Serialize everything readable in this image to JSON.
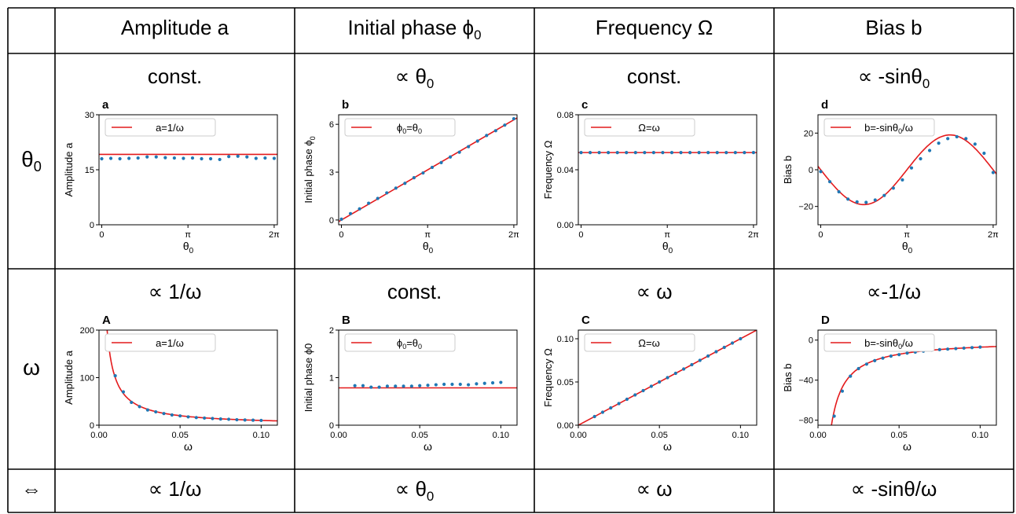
{
  "columns": [
    "Amplitude a",
    "Initial phase ϕ",
    "Frequency Ω",
    "Bias b"
  ],
  "column_subscripts": [
    "",
    "0",
    "",
    ""
  ],
  "rows": [
    {
      "label": "θ",
      "label_sub": "0",
      "rules": [
        "const.",
        "∝ θ",
        "const.",
        "∝ -sinθ"
      ],
      "rule_subs": [
        "",
        "0",
        "",
        "0"
      ]
    },
    {
      "label": "ω",
      "label_sub": "",
      "rules": [
        "∝ 1/ω",
        "const.",
        "∝ ω",
        "∝-1/ω"
      ],
      "rule_subs": [
        "",
        "",
        "",
        ""
      ]
    }
  ],
  "summary": {
    "label": "⇔",
    "rules": [
      "∝ 1/ω",
      "∝ θ",
      "∝ ω",
      "∝ -sinθ/ω"
    ],
    "rule_subs": [
      "",
      "0",
      "",
      ""
    ],
    "rule_tails": [
      "",
      "",
      "",
      ""
    ]
  },
  "colors": {
    "fit": "#e41a1c",
    "points": "#1f77b4",
    "grid": "#000000"
  },
  "chart_data": [
    {
      "id": "a",
      "type": "scatter",
      "panel_label": "a",
      "xlabel": "θ",
      "xlabel_sub": "0",
      "ylabel": "Amplitude a",
      "xlim": [
        -0.1,
        6.4
      ],
      "ylim": [
        0,
        30
      ],
      "xticks": [
        0,
        3.14159,
        6.28318
      ],
      "xticklabels": [
        "0",
        "π",
        "2π"
      ],
      "yticks": [
        0,
        15,
        30
      ],
      "yticklabels": [
        "0",
        "15",
        "30"
      ],
      "legend": "a=1/ω",
      "legend_sub": "",
      "fit": {
        "kind": "const",
        "value": 19.2
      },
      "points": {
        "x": [
          0,
          0.3307,
          0.6614,
          0.9921,
          1.3228,
          1.6535,
          1.9842,
          2.3149,
          2.6456,
          2.9763,
          3.307,
          3.6377,
          3.9684,
          4.2991,
          4.6298,
          4.9605,
          5.2912,
          5.6219,
          5.9526,
          6.2832
        ],
        "y": [
          18.0,
          18.1,
          18.0,
          18.1,
          18.2,
          18.5,
          18.5,
          18.3,
          18.2,
          18.1,
          18.2,
          18.0,
          18.0,
          17.8,
          18.6,
          18.7,
          18.5,
          18.1,
          18.2,
          18.1
        ]
      }
    },
    {
      "id": "b",
      "type": "scatter",
      "panel_label": "b",
      "xlabel": "θ",
      "xlabel_sub": "0",
      "ylabel": "Initial phase ϕ",
      "ylabel_sub": "0",
      "xlim": [
        -0.1,
        6.4
      ],
      "ylim": [
        -0.3,
        6.6
      ],
      "xticks": [
        0,
        3.14159,
        6.28318
      ],
      "xticklabels": [
        "0",
        "π",
        "2π"
      ],
      "yticks": [
        0,
        3,
        6
      ],
      "yticklabels": [
        "0",
        "3",
        "6"
      ],
      "legend": "ϕ=θ",
      "legend_sub": "0",
      "legend_sub2": "0",
      "fit": {
        "kind": "identity"
      },
      "points": {
        "x": [
          0,
          0.3307,
          0.6614,
          0.9921,
          1.3228,
          1.6535,
          1.9842,
          2.3149,
          2.6456,
          2.9763,
          3.307,
          3.6377,
          3.9684,
          4.2991,
          4.6298,
          4.9605,
          5.2912,
          5.6219,
          5.9526,
          6.2832
        ],
        "y": [
          0.05,
          0.4,
          0.7,
          1.05,
          1.35,
          1.7,
          2.0,
          2.3,
          2.65,
          2.95,
          3.3,
          3.6,
          3.95,
          4.25,
          4.6,
          4.95,
          5.3,
          5.6,
          5.95,
          6.35
        ]
      }
    },
    {
      "id": "c",
      "type": "scatter",
      "panel_label": "c",
      "xlabel": "θ",
      "xlabel_sub": "0",
      "ylabel": "Frequency Ω",
      "xlim": [
        -0.1,
        6.4
      ],
      "ylim": [
        0,
        0.08
      ],
      "xticks": [
        0,
        3.14159,
        6.28318
      ],
      "xticklabels": [
        "0",
        "π",
        "2π"
      ],
      "yticks": [
        0,
        0.04,
        0.08
      ],
      "yticklabels": [
        "0.00",
        "0.04",
        "0.08"
      ],
      "legend": "Ω=ω",
      "legend_sub": "",
      "fit": {
        "kind": "const",
        "value": 0.0525
      },
      "points": {
        "x": [
          0,
          0.3307,
          0.6614,
          0.9921,
          1.3228,
          1.6535,
          1.9842,
          2.3149,
          2.6456,
          2.9763,
          3.307,
          3.6377,
          3.9684,
          4.2991,
          4.6298,
          4.9605,
          5.2912,
          5.6219,
          5.9526,
          6.2832
        ],
        "y": [
          0.0525,
          0.0525,
          0.0525,
          0.0525,
          0.0525,
          0.0525,
          0.0525,
          0.0525,
          0.0525,
          0.0525,
          0.0525,
          0.0525,
          0.0525,
          0.0525,
          0.0525,
          0.0525,
          0.0525,
          0.0525,
          0.0525,
          0.0525
        ]
      }
    },
    {
      "id": "d",
      "type": "scatter",
      "panel_label": "d",
      "xlabel": "θ",
      "xlabel_sub": "0",
      "ylabel": "Bias b",
      "xlim": [
        -0.1,
        6.4
      ],
      "ylim": [
        -30,
        30
      ],
      "xticks": [
        0,
        3.14159,
        6.28318
      ],
      "xticklabels": [
        "0",
        "π",
        "2π"
      ],
      "yticks": [
        -20,
        0,
        20
      ],
      "yticklabels": [
        "−20",
        "0",
        "20"
      ],
      "legend": "b=-sinθ/ω",
      "legend_sub": "0",
      "fit": {
        "kind": "negsin",
        "amp": 19
      },
      "points": {
        "x": [
          0,
          0.3307,
          0.6614,
          0.9921,
          1.3228,
          1.6535,
          1.9842,
          2.3149,
          2.6456,
          2.9763,
          3.307,
          3.6377,
          3.9684,
          4.2991,
          4.6298,
          4.9605,
          5.2912,
          5.6219,
          5.9526,
          6.2832
        ],
        "y": [
          -1,
          -6.5,
          -12,
          -16,
          -17.5,
          -17.8,
          -16.5,
          -14,
          -10,
          -5.5,
          1,
          6,
          10.5,
          14.5,
          17,
          18,
          17,
          14,
          9,
          -1.5
        ]
      }
    },
    {
      "id": "A",
      "type": "scatter",
      "panel_label": "A",
      "xlabel": "ω",
      "ylabel": "Amplitude a",
      "xlim": [
        0,
        0.11
      ],
      "ylim": [
        0,
        200
      ],
      "xticks": [
        0,
        0.05,
        0.1
      ],
      "xticklabels": [
        "0.00",
        "0.05",
        "0.10"
      ],
      "yticks": [
        0,
        100,
        200
      ],
      "yticklabels": [
        "0",
        "100",
        "200"
      ],
      "legend": "a=1/ω",
      "legend_sub": "",
      "fit": {
        "kind": "inverse",
        "k": 1
      },
      "points": {
        "x": [
          0.01,
          0.015,
          0.02,
          0.025,
          0.03,
          0.035,
          0.04,
          0.045,
          0.05,
          0.055,
          0.06,
          0.065,
          0.07,
          0.075,
          0.08,
          0.085,
          0.09,
          0.095,
          0.1
        ],
        "y": [
          104,
          70,
          48,
          39,
          32,
          28,
          24.5,
          21.5,
          19.5,
          17.5,
          16,
          15,
          14,
          13,
          12.5,
          11.5,
          11,
          10.5,
          10
        ]
      }
    },
    {
      "id": "B",
      "type": "scatter",
      "panel_label": "B",
      "xlabel": "ω",
      "ylabel": "Initial phase ϕ0",
      "xlim": [
        0,
        0.11
      ],
      "ylim": [
        0,
        2
      ],
      "xticks": [
        0,
        0.05,
        0.1
      ],
      "xticklabels": [
        "0.00",
        "0.05",
        "0.10"
      ],
      "yticks": [
        0,
        1,
        2
      ],
      "yticklabels": [
        "0",
        "1",
        "2"
      ],
      "legend": "ϕ=θ",
      "legend_sub": "0",
      "legend_sub2": "0",
      "fit": {
        "kind": "const",
        "value": 0.785
      },
      "points": {
        "x": [
          0.01,
          0.015,
          0.02,
          0.025,
          0.03,
          0.035,
          0.04,
          0.045,
          0.05,
          0.055,
          0.06,
          0.065,
          0.07,
          0.075,
          0.08,
          0.085,
          0.09,
          0.095,
          0.1
        ],
        "y": [
          0.83,
          0.83,
          0.8,
          0.8,
          0.82,
          0.82,
          0.82,
          0.82,
          0.83,
          0.84,
          0.85,
          0.86,
          0.86,
          0.86,
          0.85,
          0.87,
          0.88,
          0.89,
          0.9
        ]
      }
    },
    {
      "id": "C",
      "type": "scatter",
      "panel_label": "C",
      "xlabel": "ω",
      "ylabel": "Frequency Ω",
      "xlim": [
        0,
        0.11
      ],
      "ylim": [
        0,
        0.11
      ],
      "xticks": [
        0,
        0.05,
        0.1
      ],
      "xticklabels": [
        "0.00",
        "0.05",
        "0.10"
      ],
      "yticks": [
        0,
        0.05,
        0.1
      ],
      "yticklabels": [
        "0.00",
        "0.05",
        "0.10"
      ],
      "legend": "Ω=ω",
      "legend_sub": "",
      "fit": {
        "kind": "identity"
      },
      "points": {
        "x": [
          0.01,
          0.015,
          0.02,
          0.025,
          0.03,
          0.035,
          0.04,
          0.045,
          0.05,
          0.055,
          0.06,
          0.065,
          0.07,
          0.075,
          0.08,
          0.085,
          0.09,
          0.095,
          0.1
        ],
        "y": [
          0.01,
          0.015,
          0.02,
          0.025,
          0.03,
          0.035,
          0.04,
          0.045,
          0.05,
          0.055,
          0.06,
          0.065,
          0.07,
          0.075,
          0.08,
          0.085,
          0.09,
          0.095,
          0.1
        ]
      }
    },
    {
      "id": "D",
      "type": "scatter",
      "panel_label": "D",
      "xlabel": "ω",
      "ylabel": "Bias b",
      "xlim": [
        0,
        0.11
      ],
      "ylim": [
        -85,
        10
      ],
      "xticks": [
        0,
        0.05,
        0.1
      ],
      "xticklabels": [
        "0.00",
        "0.05",
        "0.10"
      ],
      "yticks": [
        -80,
        -40,
        0
      ],
      "yticklabels": [
        "−80",
        "−40",
        "0"
      ],
      "legend": "b=-sinθ/ω",
      "legend_sub": "0",
      "fit": {
        "kind": "inverse",
        "k": -0.7071
      },
      "points": {
        "x": [
          0.01,
          0.015,
          0.02,
          0.025,
          0.03,
          0.035,
          0.04,
          0.045,
          0.05,
          0.055,
          0.06,
          0.065,
          0.07,
          0.075,
          0.08,
          0.085,
          0.09,
          0.095,
          0.1
        ],
        "y": [
          -76,
          -51,
          -36,
          -28.5,
          -24,
          -20.5,
          -18,
          -16,
          -14.5,
          -13,
          -12,
          -11,
          -10,
          -9.5,
          -9,
          -8.5,
          -8,
          -7.5,
          -7
        ]
      }
    }
  ]
}
